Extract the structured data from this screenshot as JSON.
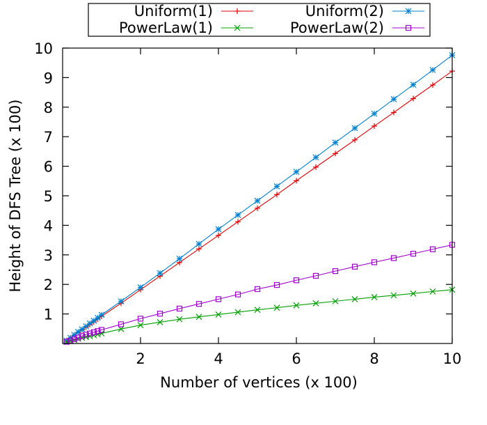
{
  "chart_data": {
    "type": "line",
    "title": "",
    "xlabel": "Number of vertices (x 100)",
    "ylabel": "Height of DFS Tree (x 100)",
    "xlim": [
      0,
      10
    ],
    "ylim": [
      0,
      10
    ],
    "xticks": [
      2,
      4,
      6,
      8,
      10
    ],
    "yticks": [
      1,
      2,
      3,
      4,
      5,
      6,
      7,
      8,
      9,
      10
    ],
    "grid": false,
    "legend_position": "top, above plot, two columns",
    "x": [
      0.1,
      0.2,
      0.3,
      0.4,
      0.5,
      0.6,
      0.7,
      0.8,
      0.9,
      1.0,
      1.5,
      2.0,
      2.5,
      3.0,
      3.5,
      4.0,
      4.5,
      5.0,
      5.5,
      6.0,
      6.5,
      7.0,
      7.5,
      8.0,
      8.5,
      9.0,
      9.5,
      10.0
    ],
    "series": [
      {
        "name": "Uniform(1)",
        "color": "#e00000",
        "marker": "plus",
        "values": [
          0.09,
          0.18,
          0.28,
          0.37,
          0.46,
          0.55,
          0.64,
          0.73,
          0.83,
          0.92,
          1.36,
          1.82,
          2.28,
          2.74,
          3.2,
          3.66,
          4.12,
          4.58,
          5.04,
          5.51,
          5.97,
          6.43,
          6.89,
          7.36,
          7.82,
          8.29,
          8.75,
          9.22
        ]
      },
      {
        "name": "Uniform(2)",
        "color": "#0080d0",
        "marker": "star",
        "values": [
          0.1,
          0.19,
          0.29,
          0.39,
          0.48,
          0.58,
          0.68,
          0.77,
          0.87,
          0.97,
          1.43,
          1.9,
          2.38,
          2.87,
          3.37,
          3.87,
          4.35,
          4.83,
          5.32,
          5.81,
          6.3,
          6.8,
          7.29,
          7.78,
          8.27,
          8.76,
          9.26,
          9.76
        ]
      },
      {
        "name": "PowerLaw(1)",
        "color": "#00a000",
        "marker": "x",
        "values": [
          0.05,
          0.08,
          0.12,
          0.16,
          0.19,
          0.22,
          0.25,
          0.28,
          0.31,
          0.34,
          0.49,
          0.62,
          0.72,
          0.82,
          0.9,
          0.98,
          1.06,
          1.14,
          1.21,
          1.29,
          1.36,
          1.43,
          1.5,
          1.57,
          1.63,
          1.69,
          1.76,
          1.82
        ]
      },
      {
        "name": "PowerLaw(2)",
        "color": "#a000d0",
        "marker": "square",
        "values": [
          0.06,
          0.1,
          0.15,
          0.2,
          0.25,
          0.3,
          0.34,
          0.38,
          0.42,
          0.46,
          0.65,
          0.84,
          1.01,
          1.18,
          1.34,
          1.5,
          1.66,
          1.84,
          1.98,
          2.14,
          2.29,
          2.45,
          2.6,
          2.75,
          2.89,
          3.04,
          3.19,
          3.34
        ]
      }
    ]
  }
}
